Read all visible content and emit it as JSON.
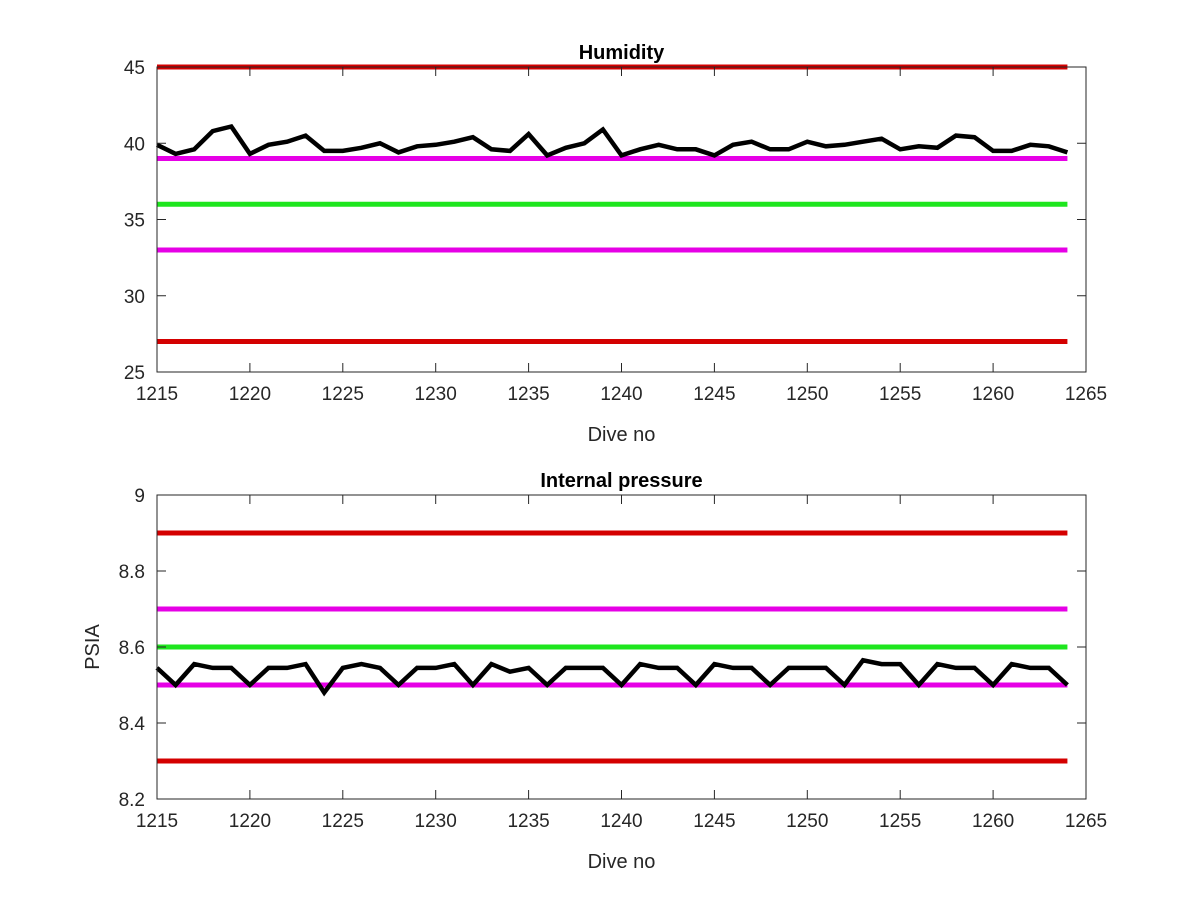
{
  "chart_data": [
    {
      "type": "line",
      "title": "Humidity",
      "xlabel": "Dive no",
      "ylabel": "",
      "xlim": [
        1215,
        1265
      ],
      "ylim": [
        25,
        45
      ],
      "xticks": [
        "1215",
        "1220",
        "1225",
        "1230",
        "1235",
        "1240",
        "1245",
        "1250",
        "1255",
        "1260",
        "1265"
      ],
      "yticks": [
        "25",
        "30",
        "35",
        "40",
        "45"
      ],
      "grid": false,
      "reference_lines": [
        {
          "y": 45,
          "color": "#d40000"
        },
        {
          "y": 39,
          "color": "#e600e6"
        },
        {
          "y": 36,
          "color": "#1ee61e"
        },
        {
          "y": 33,
          "color": "#e600e6"
        },
        {
          "y": 27,
          "color": "#d40000"
        }
      ],
      "series": [
        {
          "color": "#000000",
          "x": [
            1215,
            1216,
            1217,
            1218,
            1219,
            1220,
            1221,
            1222,
            1223,
            1224,
            1225,
            1226,
            1227,
            1228,
            1229,
            1230,
            1231,
            1232,
            1233,
            1234,
            1235,
            1236,
            1237,
            1238,
            1239,
            1240,
            1241,
            1242,
            1243,
            1244,
            1245,
            1246,
            1247,
            1248,
            1249,
            1250,
            1251,
            1252,
            1253,
            1254,
            1255,
            1256,
            1257,
            1258,
            1259,
            1260,
            1261,
            1262,
            1263,
            1264
          ],
          "values": [
            39.9,
            39.3,
            39.6,
            40.8,
            41.1,
            39.3,
            39.9,
            40.1,
            40.5,
            39.5,
            39.5,
            39.7,
            40.0,
            39.4,
            39.8,
            39.9,
            40.1,
            40.4,
            39.6,
            39.5,
            40.6,
            39.2,
            39.7,
            40.0,
            40.9,
            39.2,
            39.6,
            39.9,
            39.6,
            39.6,
            39.2,
            39.9,
            40.1,
            39.6,
            39.6,
            40.1,
            39.8,
            39.9,
            40.1,
            40.3,
            39.6,
            39.8,
            39.7,
            40.5,
            40.4,
            39.5,
            39.5,
            39.9,
            39.8,
            39.4
          ]
        }
      ]
    },
    {
      "type": "line",
      "title": "Internal pressure",
      "xlabel": "Dive no",
      "ylabel": "PSIA",
      "xlim": [
        1215,
        1265
      ],
      "ylim": [
        8.2,
        9.0
      ],
      "xticks": [
        "1215",
        "1220",
        "1225",
        "1230",
        "1235",
        "1240",
        "1245",
        "1250",
        "1255",
        "1260",
        "1265"
      ],
      "yticks": [
        "8.2",
        "8.4",
        "8.6",
        "8.8",
        "9"
      ],
      "grid": false,
      "reference_lines": [
        {
          "y": 8.9,
          "color": "#d40000"
        },
        {
          "y": 8.7,
          "color": "#e600e6"
        },
        {
          "y": 8.6,
          "color": "#1ee61e"
        },
        {
          "y": 8.5,
          "color": "#e600e6"
        },
        {
          "y": 8.3,
          "color": "#d40000"
        }
      ],
      "series": [
        {
          "color": "#000000",
          "x": [
            1215,
            1216,
            1217,
            1218,
            1219,
            1220,
            1221,
            1222,
            1223,
            1224,
            1225,
            1226,
            1227,
            1228,
            1229,
            1230,
            1231,
            1232,
            1233,
            1234,
            1235,
            1236,
            1237,
            1238,
            1239,
            1240,
            1241,
            1242,
            1243,
            1244,
            1245,
            1246,
            1247,
            1248,
            1249,
            1250,
            1251,
            1252,
            1253,
            1254,
            1255,
            1256,
            1257,
            1258,
            1259,
            1260,
            1261,
            1262,
            1263,
            1264
          ],
          "values": [
            8.545,
            8.5,
            8.555,
            8.545,
            8.545,
            8.5,
            8.545,
            8.545,
            8.555,
            8.48,
            8.545,
            8.555,
            8.545,
            8.5,
            8.545,
            8.545,
            8.555,
            8.5,
            8.555,
            8.535,
            8.545,
            8.5,
            8.545,
            8.545,
            8.545,
            8.5,
            8.555,
            8.545,
            8.545,
            8.5,
            8.555,
            8.545,
            8.545,
            8.5,
            8.545,
            8.545,
            8.545,
            8.5,
            8.565,
            8.555,
            8.555,
            8.5,
            8.555,
            8.545,
            8.545,
            8.5,
            8.555,
            8.545,
            8.545,
            8.5
          ]
        }
      ]
    }
  ]
}
